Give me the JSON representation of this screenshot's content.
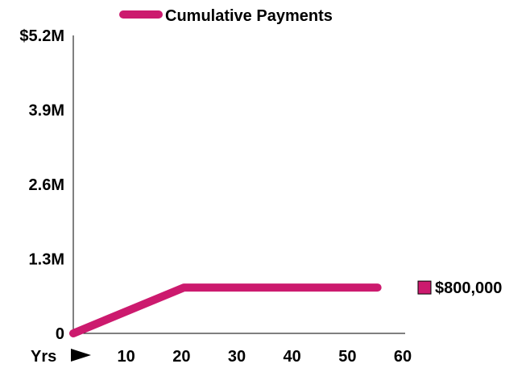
{
  "chart_data": {
    "type": "line",
    "legend": {
      "label": "Cumulative Payments",
      "placement": "top-center"
    },
    "series": [
      {
        "name": "Cumulative Payments",
        "color": "#cc1a6e",
        "x": [
          0,
          20,
          55
        ],
        "y": [
          0,
          800000,
          800000
        ]
      }
    ],
    "x_axis": {
      "start_label": "Yrs",
      "ticks": [
        10,
        20,
        30,
        40,
        50,
        60
      ],
      "tick_labels": [
        "10",
        "20",
        "30",
        "40",
        "50",
        "60"
      ],
      "range": [
        0,
        60
      ]
    },
    "y_axis": {
      "ticks": [
        0,
        1300000,
        2600000,
        3900000,
        5200000
      ],
      "tick_labels": [
        "0",
        "1.3M",
        "2.6M",
        "3.9M",
        "$5.2M"
      ],
      "range": [
        0,
        5200000
      ]
    },
    "end_annotation": {
      "label": "$800,000",
      "value": 800000
    },
    "grid": false
  }
}
